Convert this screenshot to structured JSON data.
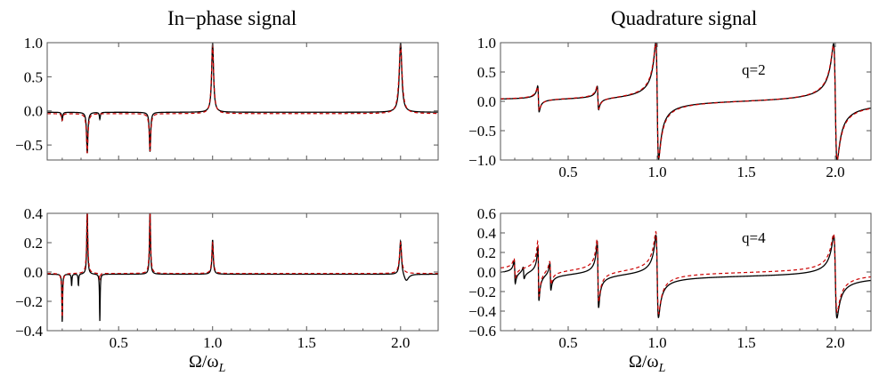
{
  "figure": {
    "left_title": "In−phase signal",
    "right_title": "Quadrature signal",
    "xlabel": "Ω/ω",
    "xlabel_sub": "L"
  },
  "colors": {
    "exact": "#000000",
    "approx": "#cc0000",
    "frame": "#555555"
  },
  "chart_data": [
    {
      "id": "inphase-q2",
      "type": "line",
      "panel_label": "",
      "xlim": [
        0.12,
        2.2
      ],
      "ylim": [
        -0.72,
        1.0
      ],
      "xticks": [
        0.5,
        1.0,
        1.5,
        2.0
      ],
      "xtick_labels": [
        "",
        "",
        "",
        ""
      ],
      "yticks": [
        -0.5,
        0.0,
        0.5,
        1.0
      ],
      "ytick_labels": [
        "−0.5",
        "0.0",
        "0.5",
        "1.0"
      ],
      "series": [
        {
          "style": "solid",
          "baseline": -0.02,
          "resonances": [
            {
              "x": 0.333,
              "kind": "dip",
              "amp": 0.6,
              "w": 0.004
            },
            {
              "x": 0.667,
              "kind": "dip",
              "amp": 0.58,
              "w": 0.004
            },
            {
              "x": 1.0,
              "kind": "peak",
              "amp": 1.0,
              "w": 0.006
            },
            {
              "x": 2.0,
              "kind": "peak",
              "amp": 1.0,
              "w": 0.008
            },
            {
              "x": 0.2,
              "kind": "dip",
              "amp": 0.12,
              "w": 0.003
            },
            {
              "x": 0.4,
              "kind": "dip",
              "amp": 0.1,
              "w": 0.003
            }
          ]
        },
        {
          "style": "dashed",
          "baseline": -0.04,
          "resonances": [
            {
              "x": 0.333,
              "kind": "dip",
              "amp": 0.58,
              "w": 0.005
            },
            {
              "x": 0.667,
              "kind": "dip",
              "amp": 0.55,
              "w": 0.005
            },
            {
              "x": 1.0,
              "kind": "peak",
              "amp": 0.96,
              "w": 0.007
            },
            {
              "x": 2.0,
              "kind": "peak",
              "amp": 0.96,
              "w": 0.01
            },
            {
              "x": 0.2,
              "kind": "dip",
              "amp": 0.1,
              "w": 0.004
            }
          ]
        }
      ]
    },
    {
      "id": "quadrature-q2",
      "type": "line",
      "panel_label": "q=2",
      "xlim": [
        0.12,
        2.2
      ],
      "ylim": [
        -1.0,
        1.0
      ],
      "xticks": [
        0.5,
        1.0,
        1.5,
        2.0
      ],
      "xtick_labels": [
        "0.5",
        "1.0",
        "1.5",
        "2.0"
      ],
      "yticks": [
        -1.0,
        -0.5,
        0.0,
        0.5,
        1.0
      ],
      "ytick_labels": [
        "−1.0",
        "−0.5",
        "0.0",
        "0.5",
        "1.0"
      ],
      "series": [
        {
          "style": "solid",
          "baseline": 0.0,
          "resonances": [
            {
              "x": 0.333,
              "kind": "dispersive",
              "amp": 0.22,
              "w": 0.004
            },
            {
              "x": 0.667,
              "kind": "dispersive",
              "amp": 0.2,
              "w": 0.004
            },
            {
              "x": 1.0,
              "kind": "dispersive",
              "amp": 1.0,
              "w": 0.008
            },
            {
              "x": 2.0,
              "kind": "dispersive",
              "amp": 1.0,
              "w": 0.01
            }
          ]
        },
        {
          "style": "dashed",
          "baseline": 0.0,
          "resonances": [
            {
              "x": 0.333,
              "kind": "dispersive",
              "amp": 0.2,
              "w": 0.005
            },
            {
              "x": 0.667,
              "kind": "dispersive",
              "amp": 0.19,
              "w": 0.005
            },
            {
              "x": 1.0,
              "kind": "dispersive",
              "amp": 0.97,
              "w": 0.009
            },
            {
              "x": 2.0,
              "kind": "dispersive",
              "amp": 0.97,
              "w": 0.011
            }
          ]
        }
      ]
    },
    {
      "id": "inphase-q4",
      "type": "line",
      "panel_label": "",
      "xlim": [
        0.12,
        2.2
      ],
      "ylim": [
        -0.4,
        0.4
      ],
      "xticks": [
        0.5,
        1.0,
        1.5,
        2.0
      ],
      "xtick_labels": [
        "0.5",
        "1.0",
        "1.5",
        "2.0"
      ],
      "yticks": [
        -0.4,
        -0.2,
        0.0,
        0.2,
        0.4
      ],
      "ytick_labels": [
        "−0.4",
        "−0.2",
        "0.0",
        "0.2",
        "0.4"
      ],
      "series": [
        {
          "style": "solid",
          "baseline": -0.015,
          "resonances": [
            {
              "x": 0.2,
              "kind": "dip",
              "amp": 0.33,
              "w": 0.002
            },
            {
              "x": 0.25,
              "kind": "dip",
              "amp": 0.08,
              "w": 0.002
            },
            {
              "x": 0.286,
              "kind": "dip",
              "amp": 0.08,
              "w": 0.002
            },
            {
              "x": 0.333,
              "kind": "peak",
              "amp": 0.42,
              "w": 0.003
            },
            {
              "x": 0.4,
              "kind": "dip",
              "amp": 0.32,
              "w": 0.002
            },
            {
              "x": 0.667,
              "kind": "peak",
              "amp": 0.42,
              "w": 0.003
            },
            {
              "x": 1.0,
              "kind": "peak",
              "amp": 0.22,
              "w": 0.004
            },
            {
              "x": 2.0,
              "kind": "peak",
              "amp": 0.22,
              "w": 0.006
            },
            {
              "x": 2.03,
              "kind": "dip",
              "amp": 0.05,
              "w": 0.015
            }
          ]
        },
        {
          "style": "dashed",
          "baseline": -0.01,
          "resonances": [
            {
              "x": 0.2,
              "kind": "dip",
              "amp": 0.3,
              "w": 0.003
            },
            {
              "x": 0.333,
              "kind": "peak",
              "amp": 0.4,
              "w": 0.004
            },
            {
              "x": 0.4,
              "kind": "dip",
              "amp": 0.04,
              "w": 0.003
            },
            {
              "x": 0.667,
              "kind": "peak",
              "amp": 0.4,
              "w": 0.004
            },
            {
              "x": 1.0,
              "kind": "peak",
              "amp": 0.2,
              "w": 0.005
            },
            {
              "x": 2.0,
              "kind": "peak",
              "amp": 0.2,
              "w": 0.007
            }
          ]
        }
      ]
    },
    {
      "id": "quadrature-q4",
      "type": "line",
      "panel_label": "q=4",
      "xlim": [
        0.12,
        2.2
      ],
      "ylim": [
        -0.6,
        0.6
      ],
      "xticks": [
        0.5,
        1.0,
        1.5,
        2.0
      ],
      "xtick_labels": [
        "0.5",
        "1.0",
        "1.5",
        "2.0"
      ],
      "yticks": [
        -0.6,
        -0.4,
        -0.2,
        0.0,
        0.2,
        0.4,
        0.6
      ],
      "ytick_labels": [
        "−0.6",
        "−0.4",
        "−0.2",
        "0.0",
        "0.2",
        "0.4",
        "0.6"
      ],
      "series": [
        {
          "style": "solid",
          "baseline": -0.04,
          "resonances": [
            {
              "x": 0.2,
              "kind": "dispersive",
              "amp": 0.12,
              "w": 0.003
            },
            {
              "x": 0.25,
              "kind": "dispersive",
              "amp": 0.06,
              "w": 0.003
            },
            {
              "x": 0.333,
              "kind": "dispersive",
              "amp": 0.28,
              "w": 0.003
            },
            {
              "x": 0.4,
              "kind": "dispersive",
              "amp": 0.14,
              "w": 0.003
            },
            {
              "x": 0.667,
              "kind": "dispersive",
              "amp": 0.34,
              "w": 0.004
            },
            {
              "x": 1.0,
              "kind": "dispersive",
              "amp": 0.42,
              "w": 0.007
            },
            {
              "x": 2.0,
              "kind": "dispersive",
              "amp": 0.42,
              "w": 0.009
            }
          ]
        },
        {
          "style": "dashed",
          "baseline": 0.0,
          "resonances": [
            {
              "x": 0.2,
              "kind": "dispersive",
              "amp": 0.1,
              "w": 0.004
            },
            {
              "x": 0.333,
              "kind": "dispersive",
              "amp": 0.28,
              "w": 0.004
            },
            {
              "x": 0.4,
              "kind": "dispersive",
              "amp": 0.12,
              "w": 0.004
            },
            {
              "x": 0.667,
              "kind": "dispersive",
              "amp": 0.32,
              "w": 0.005
            },
            {
              "x": 1.0,
              "kind": "dispersive",
              "amp": 0.42,
              "w": 0.008
            },
            {
              "x": 2.0,
              "kind": "dispersive",
              "amp": 0.4,
              "w": 0.01
            }
          ]
        }
      ]
    }
  ]
}
